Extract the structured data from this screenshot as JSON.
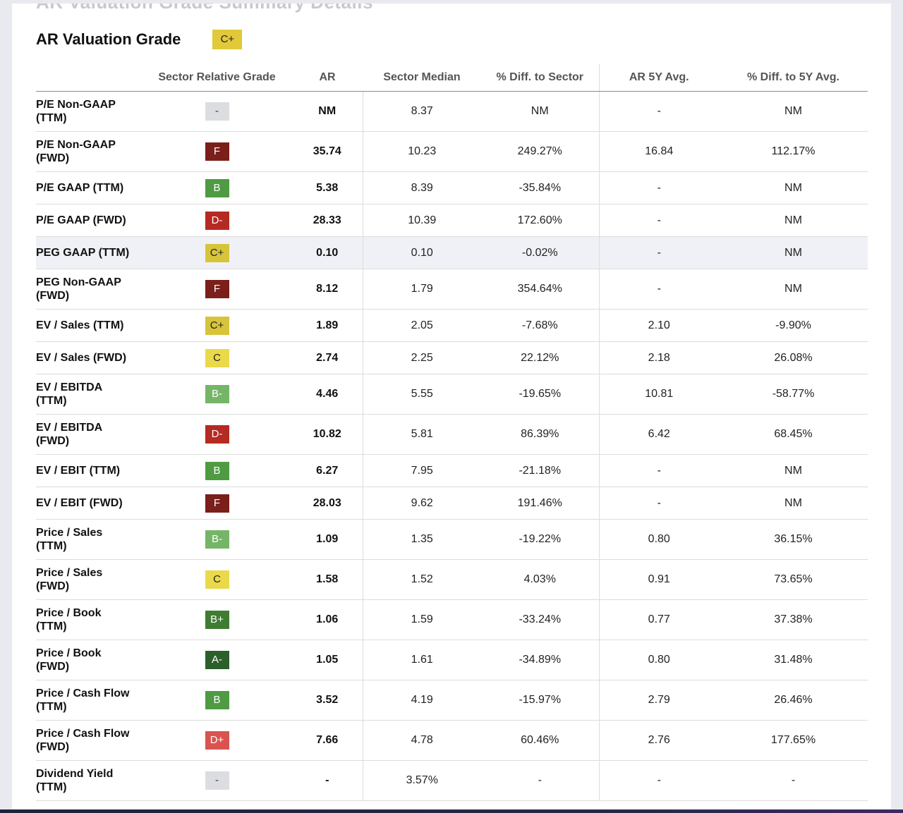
{
  "header": {
    "cutoff_heading": "AR Valuation Grade Summary Details",
    "title": "AR Valuation Grade",
    "overall_grade": "C+"
  },
  "columns": [
    "",
    "Sector Relative Grade",
    "AR",
    "Sector Median",
    "% Diff. to Sector",
    "AR 5Y Avg.",
    "% Diff. to 5Y Avg."
  ],
  "grade_colors": {
    "A-": "#2b5f2b",
    "B+": "#3e7c32",
    "B": "#4f9a43",
    "B-": "#75b567",
    "C+": "#d7c43a",
    "C": "#ead94a",
    "D+": "#d9534f",
    "D-": "#b52a22",
    "F": "#7a1f1a",
    "-": "#dcdde1"
  },
  "rows": [
    {
      "metric": "P/E Non-GAAP (TTM)",
      "grade": "-",
      "ar": "NM",
      "sector_median": "8.37",
      "diff_sector": "NM",
      "ar_5y": "-",
      "diff_5y": "NM"
    },
    {
      "metric": "P/E Non-GAAP (FWD)",
      "grade": "F",
      "ar": "35.74",
      "sector_median": "10.23",
      "diff_sector": "249.27%",
      "ar_5y": "16.84",
      "diff_5y": "112.17%"
    },
    {
      "metric": "P/E GAAP (TTM)",
      "grade": "B",
      "ar": "5.38",
      "sector_median": "8.39",
      "diff_sector": "-35.84%",
      "ar_5y": "-",
      "diff_5y": "NM"
    },
    {
      "metric": "P/E GAAP (FWD)",
      "grade": "D-",
      "ar": "28.33",
      "sector_median": "10.39",
      "diff_sector": "172.60%",
      "ar_5y": "-",
      "diff_5y": "NM"
    },
    {
      "metric": "PEG GAAP (TTM)",
      "grade": "C+",
      "ar": "0.10",
      "sector_median": "0.10",
      "diff_sector": "-0.02%",
      "ar_5y": "-",
      "diff_5y": "NM"
    },
    {
      "metric": "PEG Non-GAAP (FWD)",
      "grade": "F",
      "ar": "8.12",
      "sector_median": "1.79",
      "diff_sector": "354.64%",
      "ar_5y": "-",
      "diff_5y": "NM"
    },
    {
      "metric": "EV / Sales (TTM)",
      "grade": "C+",
      "ar": "1.89",
      "sector_median": "2.05",
      "diff_sector": "-7.68%",
      "ar_5y": "2.10",
      "diff_5y": "-9.90%"
    },
    {
      "metric": "EV / Sales (FWD)",
      "grade": "C",
      "ar": "2.74",
      "sector_median": "2.25",
      "diff_sector": "22.12%",
      "ar_5y": "2.18",
      "diff_5y": "26.08%"
    },
    {
      "metric": "EV / EBITDA (TTM)",
      "grade": "B-",
      "ar": "4.46",
      "sector_median": "5.55",
      "diff_sector": "-19.65%",
      "ar_5y": "10.81",
      "diff_5y": "-58.77%"
    },
    {
      "metric": "EV / EBITDA (FWD)",
      "grade": "D-",
      "ar": "10.82",
      "sector_median": "5.81",
      "diff_sector": "86.39%",
      "ar_5y": "6.42",
      "diff_5y": "68.45%"
    },
    {
      "metric": "EV / EBIT (TTM)",
      "grade": "B",
      "ar": "6.27",
      "sector_median": "7.95",
      "diff_sector": "-21.18%",
      "ar_5y": "-",
      "diff_5y": "NM"
    },
    {
      "metric": "EV / EBIT (FWD)",
      "grade": "F",
      "ar": "28.03",
      "sector_median": "9.62",
      "diff_sector": "191.46%",
      "ar_5y": "-",
      "diff_5y": "NM"
    },
    {
      "metric": "Price / Sales (TTM)",
      "grade": "B-",
      "ar": "1.09",
      "sector_median": "1.35",
      "diff_sector": "-19.22%",
      "ar_5y": "0.80",
      "diff_5y": "36.15%"
    },
    {
      "metric": "Price / Sales (FWD)",
      "grade": "C",
      "ar": "1.58",
      "sector_median": "1.52",
      "diff_sector": "4.03%",
      "ar_5y": "0.91",
      "diff_5y": "73.65%"
    },
    {
      "metric": "Price / Book (TTM)",
      "grade": "B+",
      "ar": "1.06",
      "sector_median": "1.59",
      "diff_sector": "-33.24%",
      "ar_5y": "0.77",
      "diff_5y": "37.38%"
    },
    {
      "metric": "Price / Book (FWD)",
      "grade": "A-",
      "ar": "1.05",
      "sector_median": "1.61",
      "diff_sector": "-34.89%",
      "ar_5y": "0.80",
      "diff_5y": "31.48%"
    },
    {
      "metric": "Price / Cash Flow (TTM)",
      "grade": "B",
      "ar": "3.52",
      "sector_median": "4.19",
      "diff_sector": "-15.97%",
      "ar_5y": "2.79",
      "diff_5y": "26.46%"
    },
    {
      "metric": "Price / Cash Flow (FWD)",
      "grade": "D+",
      "ar": "7.66",
      "sector_median": "4.78",
      "diff_sector": "60.46%",
      "ar_5y": "2.76",
      "diff_5y": "177.65%"
    },
    {
      "metric": "Dividend Yield (TTM)",
      "grade": "-",
      "ar": "-",
      "sector_median": "3.57%",
      "diff_sector": "-",
      "ar_5y": "-",
      "diff_5y": "-"
    }
  ]
}
